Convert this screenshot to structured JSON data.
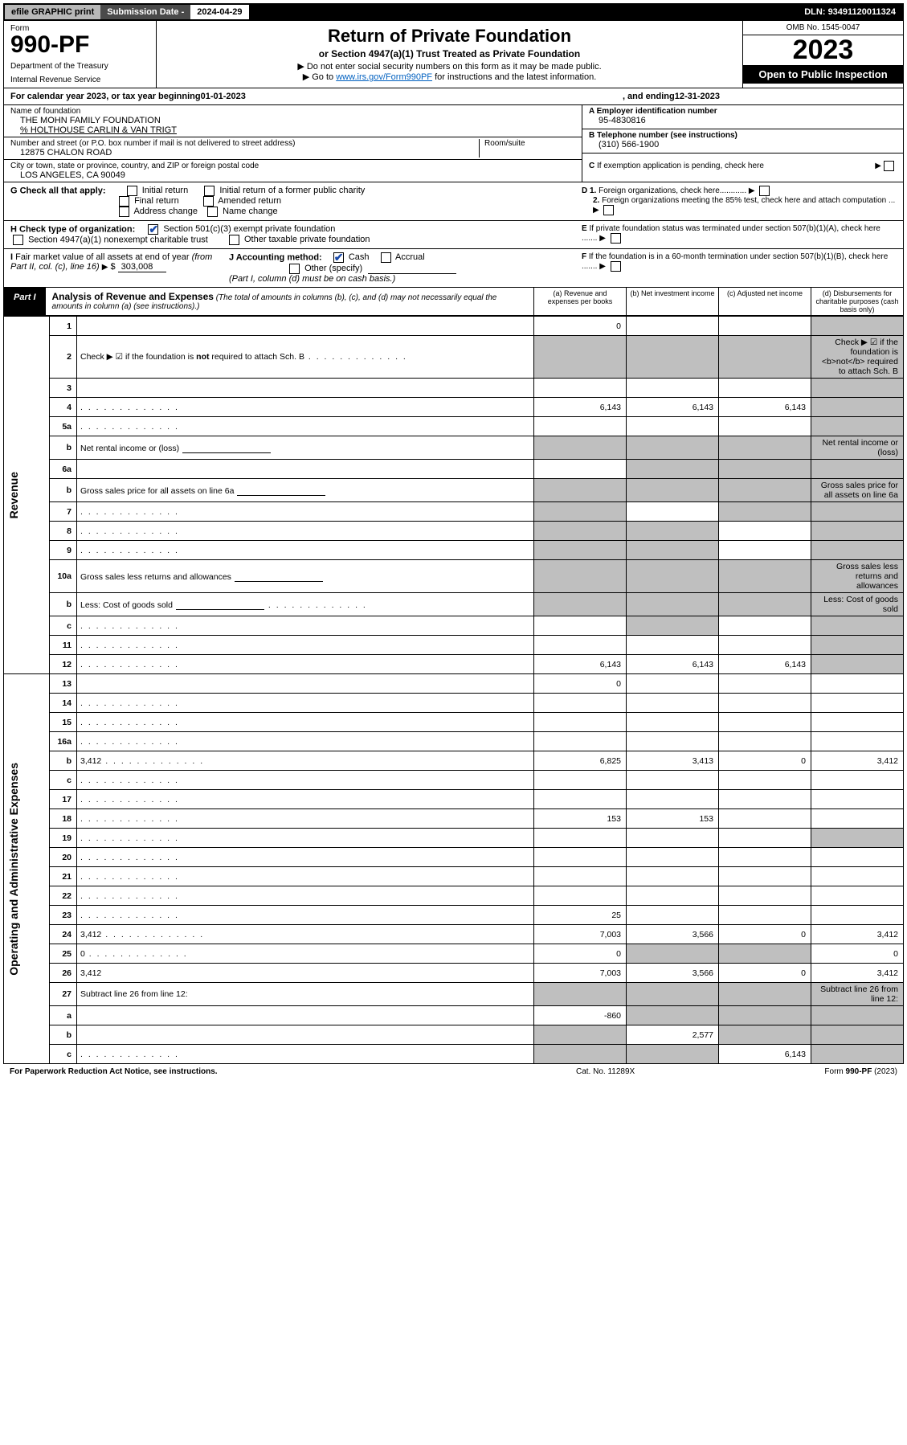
{
  "topbar": {
    "efile_label": "efile GRAPHIC print",
    "sub_label": "Submission Date - ",
    "sub_date": "2024-04-29",
    "dln_label": "DLN: ",
    "dln": "93491120011324"
  },
  "header": {
    "form_word": "Form",
    "form_number": "990-PF",
    "dept": "Department of the Treasury",
    "irs": "Internal Revenue Service",
    "title": "Return of Private Foundation",
    "subtitle": "or Section 4947(a)(1) Trust Treated as Private Foundation",
    "note1": "▶ Do not enter social security numbers on this form as it may be made public.",
    "note2_pre": "▶ Go to ",
    "note2_link": "www.irs.gov/Form990PF",
    "note2_post": " for instructions and the latest information.",
    "omb": "OMB No. 1545-0047",
    "year": "2023",
    "open": "Open to Public Inspection"
  },
  "calendar": {
    "pre": "For calendar year 2023, or tax year beginning ",
    "begin": "01-01-2023",
    "mid": " , and ending ",
    "end": "12-31-2023"
  },
  "entity": {
    "name_label": "Name of foundation",
    "name": "THE MOHN FAMILY FOUNDATION",
    "care_of": "% HOLTHOUSE CARLIN & VAN TRIGT",
    "street_label": "Number and street (or P.O. box number if mail is not delivered to street address)",
    "street": "12875 CHALON ROAD",
    "room_label": "Room/suite",
    "city_label": "City or town, state or province, country, and ZIP or foreign postal code",
    "city": "LOS ANGELES, CA  90049",
    "a_label": "A Employer identification number",
    "a_val": "95-4830816",
    "b_label": "B Telephone number (see instructions)",
    "b_val": "(310) 566-1900",
    "c_label": "C If exemption application is pending, check here",
    "d1_label": "D 1. Foreign organizations, check here............",
    "d2_label": "2. Foreign organizations meeting the 85% test, check here and attach computation ...",
    "e_label": "E  If private foundation status was terminated under section 507(b)(1)(A), check here .......",
    "f_label": "F  If the foundation is in a 60-month termination under section 507(b)(1)(B), check here .......",
    "g_label": "G Check all that apply:",
    "g_opts": [
      "Initial return",
      "Initial return of a former public charity",
      "Final return",
      "Amended return",
      "Address change",
      "Name change"
    ],
    "h_label": "H Check type of organization:",
    "h_opts": [
      "Section 501(c)(3) exempt private foundation",
      "Section 4947(a)(1) nonexempt charitable trust",
      "Other taxable private foundation"
    ],
    "i_label": "I Fair market value of all assets at end of year (from Part II, col. (c), line 16)",
    "i_val": "303,008",
    "j_label": "J Accounting method:",
    "j_opts": [
      "Cash",
      "Accrual",
      "Other (specify)"
    ],
    "j_note": "(Part I, column (d) must be on cash basis.)"
  },
  "part1": {
    "label": "Part I",
    "title": "Analysis of Revenue and Expenses",
    "title_note": " (The total of amounts in columns (b), (c), and (d) may not necessarily equal the amounts in column (a) (see instructions).)",
    "cols": {
      "a": "(a)  Revenue and expenses per books",
      "b": "(b)  Net investment income",
      "c": "(c)  Adjusted net income",
      "d": "(d)  Disbursements for charitable purposes (cash basis only)"
    }
  },
  "sections": {
    "revenue": "Revenue",
    "opex": "Operating and Administrative Expenses"
  },
  "rows": [
    {
      "n": "1",
      "d": "",
      "a": "0",
      "b": "",
      "c": "",
      "grey": [
        "d"
      ]
    },
    {
      "n": "2",
      "d": "Check ▶ ☑ if the foundation is <b>not</b> required to attach Sch. B",
      "dots": true,
      "greyall": true
    },
    {
      "n": "3",
      "d": "",
      "a": "",
      "b": "",
      "c": "",
      "grey": [
        "d"
      ]
    },
    {
      "n": "4",
      "d": "",
      "dots": true,
      "a": "6,143",
      "b": "6,143",
      "c": "6,143",
      "grey": [
        "d"
      ]
    },
    {
      "n": "5a",
      "d": "",
      "dots": true,
      "a": "",
      "b": "",
      "c": "",
      "grey": [
        "d"
      ]
    },
    {
      "n": "b",
      "d": "Net rental income or (loss)",
      "sub": true,
      "greyall": true
    },
    {
      "n": "6a",
      "d": "",
      "a": "",
      "b": "",
      "c": "",
      "grey": [
        "b",
        "c",
        "d"
      ]
    },
    {
      "n": "b",
      "d": "Gross sales price for all assets on line 6a",
      "sub": true,
      "greyall": true
    },
    {
      "n": "7",
      "d": "",
      "dots": true,
      "a": "",
      "b": "",
      "c": "",
      "grey": [
        "a",
        "c",
        "d"
      ]
    },
    {
      "n": "8",
      "d": "",
      "dots": true,
      "a": "",
      "b": "",
      "c": "",
      "grey": [
        "a",
        "b",
        "d"
      ]
    },
    {
      "n": "9",
      "d": "",
      "dots": true,
      "a": "",
      "b": "",
      "c": "",
      "grey": [
        "a",
        "b",
        "d"
      ]
    },
    {
      "n": "10a",
      "d": "Gross sales less returns and allowances",
      "sub": true,
      "greyall": true
    },
    {
      "n": "b",
      "d": "Less: Cost of goods sold",
      "dots": true,
      "sub": true,
      "greyall": true
    },
    {
      "n": "c",
      "d": "",
      "dots": true,
      "a": "",
      "b": "",
      "c": "",
      "grey": [
        "b",
        "d"
      ]
    },
    {
      "n": "11",
      "d": "",
      "dots": true,
      "a": "",
      "b": "",
      "c": "",
      "grey": [
        "d"
      ]
    },
    {
      "n": "12",
      "d": "",
      "dots": true,
      "a": "6,143",
      "b": "6,143",
      "c": "6,143",
      "grey": [
        "d"
      ]
    }
  ],
  "exp_rows": [
    {
      "n": "13",
      "d": "",
      "a": "0",
      "b": "",
      "c": ""
    },
    {
      "n": "14",
      "d": "",
      "dots": true,
      "a": "",
      "b": "",
      "c": ""
    },
    {
      "n": "15",
      "d": "",
      "dots": true,
      "a": "",
      "b": "",
      "c": ""
    },
    {
      "n": "16a",
      "d": "",
      "dots": true,
      "a": "",
      "b": "",
      "c": ""
    },
    {
      "n": "b",
      "d": "3,412",
      "dots": true,
      "a": "6,825",
      "b": "3,413",
      "c": "0"
    },
    {
      "n": "c",
      "d": "",
      "dots": true,
      "a": "",
      "b": "",
      "c": ""
    },
    {
      "n": "17",
      "d": "",
      "dots": true,
      "a": "",
      "b": "",
      "c": ""
    },
    {
      "n": "18",
      "d": "",
      "dots": true,
      "a": "153",
      "b": "153",
      "c": ""
    },
    {
      "n": "19",
      "d": "",
      "dots": true,
      "a": "",
      "b": "",
      "c": "",
      "grey": [
        "d"
      ]
    },
    {
      "n": "20",
      "d": "",
      "dots": true,
      "a": "",
      "b": "",
      "c": ""
    },
    {
      "n": "21",
      "d": "",
      "dots": true,
      "a": "",
      "b": "",
      "c": ""
    },
    {
      "n": "22",
      "d": "",
      "dots": true,
      "a": "",
      "b": "",
      "c": ""
    },
    {
      "n": "23",
      "d": "",
      "dots": true,
      "a": "25",
      "b": "",
      "c": ""
    },
    {
      "n": "24",
      "d": "3,412",
      "dots": true,
      "a": "7,003",
      "b": "3,566",
      "c": "0"
    },
    {
      "n": "25",
      "d": "0",
      "dots": true,
      "a": "0",
      "b": "",
      "c": "",
      "grey": [
        "b",
        "c"
      ]
    },
    {
      "n": "26",
      "d": "3,412",
      "a": "7,003",
      "b": "3,566",
      "c": "0"
    },
    {
      "n": "27",
      "d": "Subtract line 26 from line 12:",
      "greyall": true
    },
    {
      "n": "a",
      "d": "",
      "a": "-860",
      "b": "",
      "c": "",
      "grey": [
        "b",
        "c",
        "d"
      ]
    },
    {
      "n": "b",
      "d": "",
      "a": "",
      "b": "2,577",
      "c": "",
      "grey": [
        "a",
        "c",
        "d"
      ]
    },
    {
      "n": "c",
      "d": "",
      "dots": true,
      "a": "",
      "b": "",
      "c": "6,143",
      "grey": [
        "a",
        "b",
        "d"
      ]
    }
  ],
  "footer": {
    "left": "For Paperwork Reduction Act Notice, see instructions.",
    "mid": "Cat. No. 11289X",
    "right": "Form 990-PF (2023)"
  }
}
